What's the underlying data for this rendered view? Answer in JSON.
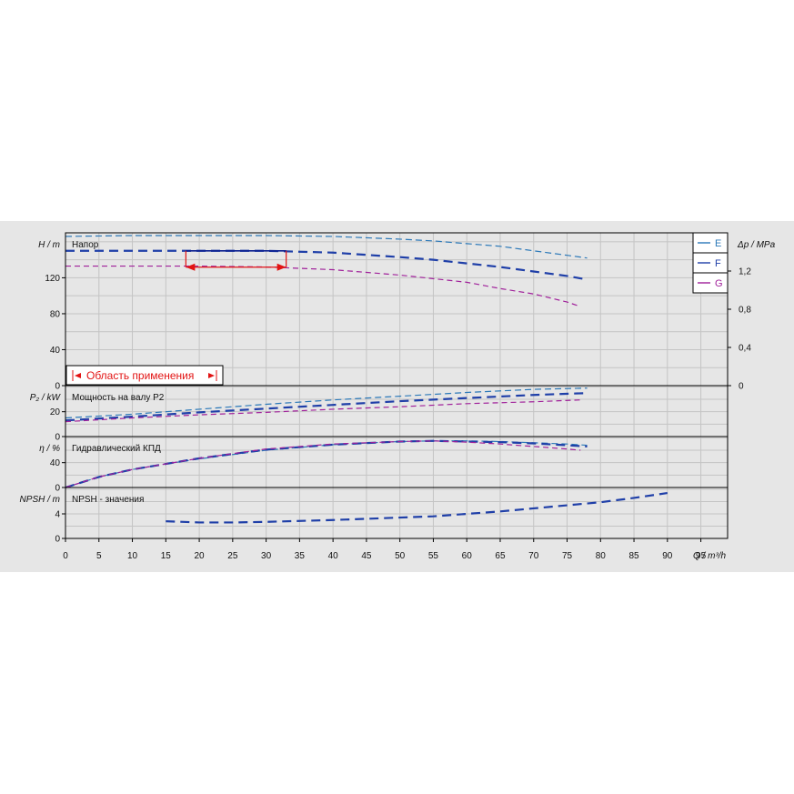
{
  "chart_data": {
    "type": "line",
    "x_axis": {
      "label": "Q / m³/h",
      "ticks": [
        "0",
        "5",
        "10",
        "15",
        "20",
        "25",
        "30",
        "35",
        "40",
        "45",
        "50",
        "55",
        "60",
        "65",
        "70",
        "75",
        "80",
        "85",
        "90",
        "95"
      ],
      "range": [
        0,
        99
      ]
    },
    "legend": {
      "placement": "top-right",
      "entries": [
        "E",
        "F",
        "G"
      ]
    },
    "series_colors": {
      "E": "#2b78b8",
      "F": "#1f3fa8",
      "G": "#a0209a"
    },
    "panels": [
      {
        "id": "head",
        "ylabel": "H / m",
        "title": "Напор",
        "yticks": [
          "0",
          "40",
          "80",
          "120"
        ],
        "ylim": [
          0,
          170
        ],
        "y2label": "Δp / MPa",
        "y2ticks": [
          "0",
          "0,4",
          "0,8",
          "1,2"
        ],
        "application_area_label": "Область применения",
        "application_range_x": [
          18,
          33
        ],
        "application_level": 150,
        "series": [
          {
            "name": "E",
            "x": [
              0,
              10,
              20,
              30,
              40,
              50,
              55,
              60,
              65,
              70,
              75,
              78
            ],
            "y": [
              166,
              167,
              167,
              167,
              166,
              163,
              161,
              158,
              155,
              150,
              145,
              142
            ]
          },
          {
            "name": "F",
            "x": [
              0,
              10,
              20,
              30,
              40,
              50,
              55,
              60,
              65,
              70,
              75,
              78
            ],
            "y": [
              150,
              150,
              150,
              150,
              148,
              143,
              140,
              136,
              132,
              127,
              122,
              118
            ]
          },
          {
            "name": "G",
            "x": [
              0,
              10,
              20,
              30,
              40,
              50,
              55,
              60,
              65,
              70,
              75,
              77
            ],
            "y": [
              133,
              133,
              133,
              132,
              129,
              123,
              119,
              115,
              108,
              102,
              93,
              88
            ]
          }
        ]
      },
      {
        "id": "power",
        "ylabel": "P₂ / kW",
        "title": "Мощность на валу P2",
        "yticks": [
          "0",
          "20"
        ],
        "ylim": [
          0,
          41
        ],
        "series": [
          {
            "name": "E",
            "x": [
              0,
              10,
              20,
              30,
              40,
              50,
              60,
              70,
              78
            ],
            "y": [
              15,
              18,
              22,
              26,
              29.5,
              32.5,
              35.5,
              38,
              39
            ]
          },
          {
            "name": "F",
            "x": [
              0,
              10,
              20,
              30,
              40,
              50,
              60,
              70,
              78
            ],
            "y": [
              13,
              16,
              19.5,
              22.5,
              25.5,
              28.5,
              31,
              33.5,
              35
            ]
          },
          {
            "name": "G",
            "x": [
              0,
              10,
              20,
              30,
              40,
              50,
              60,
              70,
              77
            ],
            "y": [
              12,
              15,
              17.5,
              19.5,
              22,
              24,
              26.5,
              28,
              29.5
            ]
          }
        ]
      },
      {
        "id": "efficiency",
        "ylabel": "η / %",
        "title": "Гидравлический КПД",
        "yticks": [
          "0",
          "40"
        ],
        "ylim": [
          0,
          82
        ],
        "series": [
          {
            "name": "E",
            "x": [
              0,
              5,
              10,
              15,
              20,
              30,
              40,
              50,
              55,
              60,
              65,
              70,
              75,
              78
            ],
            "y": [
              0,
              17,
              29,
              38,
              46,
              60,
              69,
              74,
              75,
              75,
              74,
              72,
              70,
              68
            ]
          },
          {
            "name": "F",
            "x": [
              0,
              5,
              10,
              15,
              20,
              30,
              40,
              50,
              55,
              60,
              65,
              70,
              75,
              78
            ],
            "y": [
              0,
              17,
              29,
              38,
              47,
              61,
              69,
              74,
              75,
              74,
              73,
              71,
              68,
              66
            ]
          },
          {
            "name": "G",
            "x": [
              0,
              5,
              10,
              15,
              20,
              30,
              40,
              50,
              55,
              60,
              65,
              70,
              75,
              77
            ],
            "y": [
              0,
              17,
              29,
              38,
              47,
              62,
              70,
              74,
              75,
              73,
              70,
              66,
              62,
              60
            ]
          }
        ]
      },
      {
        "id": "npsh",
        "ylabel": "NPSH / m",
        "title": "NPSH - значения",
        "yticks": [
          "0",
          "4"
        ],
        "ylim": [
          0,
          8.3
        ],
        "series": [
          {
            "name": "F",
            "x": [
              15,
              20,
              25,
              30,
              40,
              50,
              55,
              60,
              65,
              70,
              75,
              80,
              85,
              90
            ],
            "y": [
              2.8,
              2.6,
              2.6,
              2.7,
              3.0,
              3.4,
              3.6,
              4.0,
              4.4,
              4.9,
              5.4,
              5.9,
              6.6,
              7.4
            ]
          }
        ]
      }
    ]
  }
}
